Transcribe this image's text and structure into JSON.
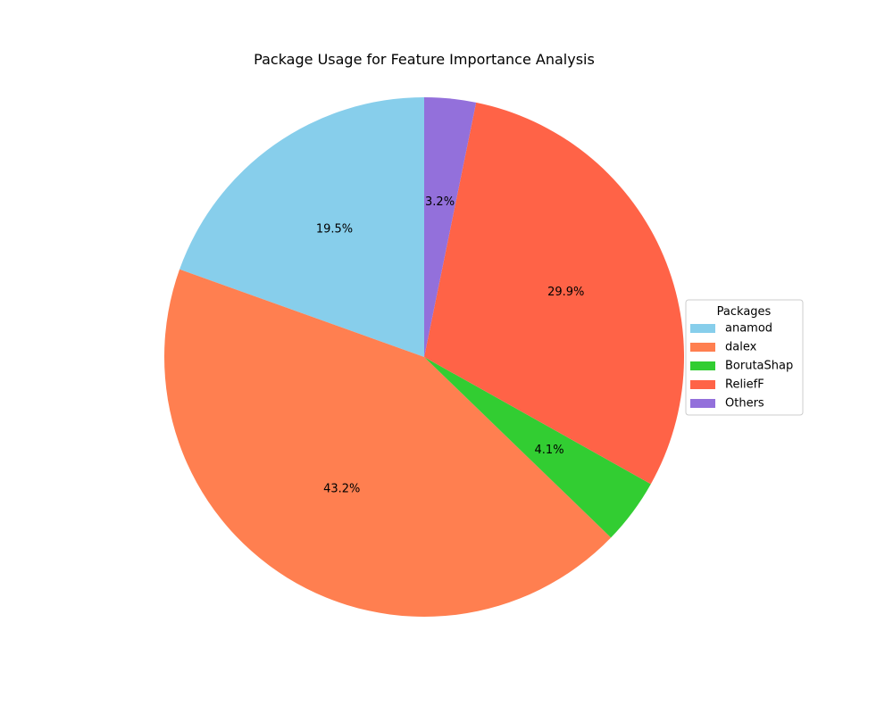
{
  "chart_data": {
    "type": "pie",
    "title": "Package Usage for Feature Importance Analysis",
    "legend_title": "Packages",
    "legend_placement": "center-right",
    "start_angle_deg": 90,
    "direction": "counterclockwise",
    "slices": [
      {
        "label": "anamod",
        "value": 19.5,
        "pct_label": "19.5%",
        "color": "#87CEEB"
      },
      {
        "label": "dalex",
        "value": 43.2,
        "pct_label": "43.2%",
        "color": "#FF7F50"
      },
      {
        "label": "BorutaShap",
        "value": 4.1,
        "pct_label": "4.1%",
        "color": "#32CD32"
      },
      {
        "label": "ReliefF",
        "value": 29.9,
        "pct_label": "29.9%",
        "color": "#FF6347"
      },
      {
        "label": "Others",
        "value": 3.2,
        "pct_label": "3.2%",
        "color": "#9370DB"
      }
    ]
  }
}
